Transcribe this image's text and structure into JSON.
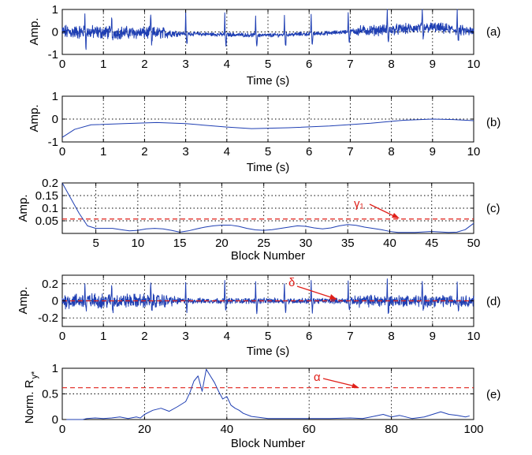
{
  "chart_data": [
    {
      "id": "a",
      "type": "line",
      "panel_label": "(a)",
      "xlabel": "Time (s)",
      "ylabel": "Amp.",
      "xlim": [
        0,
        10
      ],
      "ylim": [
        -1,
        1
      ],
      "xticks": [
        0,
        1,
        2,
        3,
        4,
        5,
        6,
        7,
        8,
        9,
        10
      ],
      "yticks": [
        -1,
        0,
        1
      ],
      "grid": true,
      "signal": {
        "kind": "ecg_noisy",
        "baseline_segments": [
          {
            "x": 0,
            "y": 0.0
          },
          {
            "x": 2.6,
            "y": -0.05
          },
          {
            "x": 3.5,
            "y": -0.1
          },
          {
            "x": 5.0,
            "y": -0.15
          },
          {
            "x": 6.5,
            "y": -0.05
          },
          {
            "x": 7.2,
            "y": 0.05
          },
          {
            "x": 8.0,
            "y": 0.1
          },
          {
            "x": 9.0,
            "y": 0.2
          },
          {
            "x": 10.0,
            "y": 0.0
          }
        ],
        "noise_amp_segments": [
          {
            "x": 0,
            "y": 0.25
          },
          {
            "x": 2.5,
            "y": 0.2
          },
          {
            "x": 2.9,
            "y": 0.07
          },
          {
            "x": 7.0,
            "y": 0.07
          },
          {
            "x": 7.2,
            "y": 0.18
          },
          {
            "x": 10.0,
            "y": 0.18
          }
        ],
        "beats": [
          0.55,
          1.2,
          2.15,
          3.0,
          3.95,
          4.7,
          5.4,
          6.05,
          6.95,
          7.9,
          8.75,
          9.6
        ],
        "r_peak": 0.9,
        "s_trough": -0.5
      }
    },
    {
      "id": "b",
      "type": "line",
      "panel_label": "(b)",
      "xlabel": "Time (s)",
      "ylabel": "Amp.",
      "xlim": [
        0,
        10
      ],
      "ylim": [
        -1,
        1
      ],
      "xticks": [
        0,
        1,
        2,
        3,
        4,
        5,
        6,
        7,
        8,
        9,
        10
      ],
      "yticks": [
        -1,
        0,
        1
      ],
      "grid": true,
      "series": [
        {
          "x": [
            0,
            0.3,
            0.7,
            1.5,
            2.3,
            3.0,
            4.0,
            4.6,
            5.5,
            6.5,
            7.5,
            8.3,
            9.0,
            9.5,
            10.0
          ],
          "y": [
            -0.8,
            -0.45,
            -0.25,
            -0.2,
            -0.15,
            -0.2,
            -0.35,
            -0.42,
            -0.38,
            -0.3,
            -0.18,
            -0.05,
            0.0,
            -0.02,
            -0.07
          ]
        }
      ]
    },
    {
      "id": "c",
      "type": "line",
      "panel_label": "(c)",
      "xlabel": "Block Number",
      "ylabel": "Amp.",
      "xlim": [
        1,
        50
      ],
      "ylim": [
        0,
        0.2
      ],
      "xticks": [
        5,
        10,
        15,
        20,
        25,
        30,
        35,
        40,
        45,
        50
      ],
      "yticks": [
        0.05,
        0.1,
        0.15,
        0.2
      ],
      "grid": true,
      "threshold": {
        "y": 0.057,
        "label": "γ₁"
      },
      "series": [
        {
          "x": [
            1,
            2,
            3,
            4,
            5,
            6,
            7,
            8,
            9,
            10,
            11,
            12,
            13,
            14,
            15,
            16,
            17,
            18,
            19,
            20,
            21,
            22,
            23,
            24,
            25,
            26,
            27,
            28,
            29,
            30,
            31,
            32,
            33,
            34,
            35,
            36,
            37,
            38,
            39,
            40,
            41,
            42,
            43,
            44,
            45,
            46,
            47,
            48,
            49,
            50
          ],
          "y": [
            0.2,
            0.14,
            0.08,
            0.03,
            0.02,
            0.02,
            0.02,
            0.015,
            0.01,
            0.012,
            0.018,
            0.02,
            0.018,
            0.012,
            0.005,
            0.01,
            0.018,
            0.025,
            0.03,
            0.033,
            0.033,
            0.028,
            0.02,
            0.014,
            0.012,
            0.015,
            0.02,
            0.025,
            0.03,
            0.028,
            0.022,
            0.018,
            0.022,
            0.03,
            0.035,
            0.032,
            0.025,
            0.02,
            0.015,
            0.008,
            0.004,
            0.004,
            0.004,
            0.006,
            0.008,
            0.006,
            0.004,
            0.005,
            0.015,
            0.04
          ]
        }
      ]
    },
    {
      "id": "d",
      "type": "line",
      "panel_label": "(d)",
      "xlabel": "Time (s)",
      "ylabel": "Amp.",
      "xlim": [
        0,
        10
      ],
      "ylim": [
        -0.3,
        0.3
      ],
      "xticks": [
        0,
        1,
        2,
        3,
        4,
        5,
        6,
        7,
        8,
        9,
        10
      ],
      "yticks": [
        -0.2,
        0,
        0.2
      ],
      "grid": true,
      "threshold": {
        "y": 0.0,
        "label": "δ"
      },
      "signal": {
        "kind": "residual_noise",
        "noise_amp_segments": [
          {
            "x": 0,
            "y": 0.07
          },
          {
            "x": 2.5,
            "y": 0.06
          },
          {
            "x": 2.9,
            "y": 0.025
          },
          {
            "x": 7.0,
            "y": 0.025
          },
          {
            "x": 7.2,
            "y": 0.055
          },
          {
            "x": 10.0,
            "y": 0.05
          }
        ],
        "beats": [
          0.55,
          1.2,
          2.15,
          3.0,
          3.95,
          4.7,
          5.4,
          6.05,
          6.95,
          7.9,
          8.75,
          9.6
        ],
        "r_peak": 0.22,
        "s_trough": -0.12
      }
    },
    {
      "id": "e",
      "type": "line",
      "panel_label": "(e)",
      "xlabel": "Block Number",
      "ylabel": "Norm. R",
      "ylabel_sub": "y*",
      "xlim": [
        0,
        100
      ],
      "ylim": [
        0,
        1
      ],
      "xticks": [
        0,
        20,
        40,
        60,
        80,
        100
      ],
      "yticks": [
        0,
        0.5,
        1
      ],
      "grid": true,
      "threshold": {
        "y": 0.62,
        "label": "α"
      },
      "series": [
        {
          "x": [
            1,
            5,
            6,
            8,
            10,
            12,
            14,
            16,
            18,
            19,
            20,
            22,
            24,
            26,
            28,
            30,
            31,
            32,
            33,
            34,
            35,
            36,
            37,
            38,
            39,
            40,
            41,
            42,
            43,
            44,
            46,
            48,
            50,
            55,
            60,
            65,
            70,
            73,
            75,
            78,
            80,
            82,
            85,
            88,
            90,
            92,
            94,
            96,
            98,
            99
          ],
          "y": [
            0,
            0,
            0.02,
            0.03,
            0.02,
            0.03,
            0.05,
            0.02,
            0.05,
            0.03,
            0.1,
            0.18,
            0.22,
            0.16,
            0.25,
            0.35,
            0.52,
            0.75,
            0.85,
            0.55,
            0.98,
            0.85,
            0.72,
            0.55,
            0.4,
            0.45,
            0.28,
            0.22,
            0.18,
            0.12,
            0.06,
            0.04,
            0.02,
            0.02,
            0.02,
            0.02,
            0.03,
            0.02,
            0.05,
            0.1,
            0.05,
            0.08,
            0.02,
            0.05,
            0.1,
            0.15,
            0.1,
            0.08,
            0.05,
            0.07
          ]
        }
      ]
    }
  ]
}
